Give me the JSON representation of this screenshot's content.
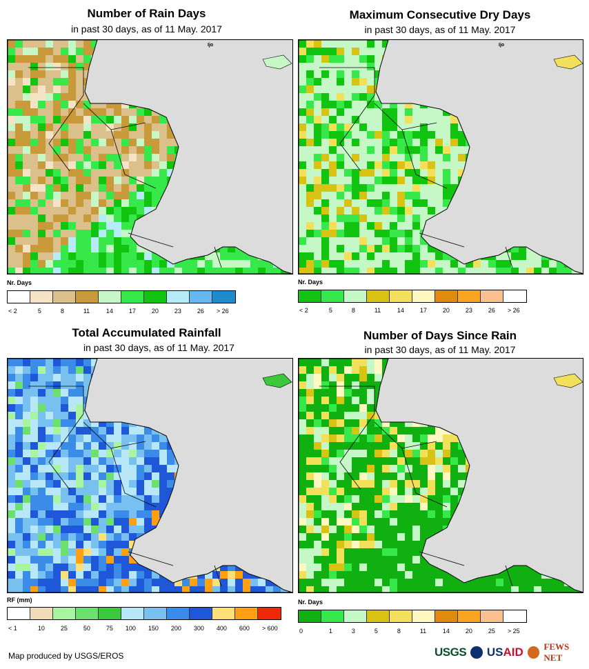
{
  "panels": [
    {
      "title": "Number of Rain Days",
      "subtitle": "in past 30 days, as of 11 May. 2017",
      "legend_title": "Nr. Days",
      "legend_colors": [
        "#ffffff",
        "#f5e3c6",
        "#dcc08c",
        "#c99a3a",
        "#c6f7c6",
        "#37e84a",
        "#10c410",
        "#b6ecf7",
        "#66b8f0",
        "#1e8ccc"
      ],
      "legend_labels": [
        "< 2",
        "5",
        "8",
        "11",
        "14",
        "17",
        "20",
        "23",
        "26",
        "> 26"
      ],
      "map_tag": "true"
    },
    {
      "title": "Maximum Consecutive Dry Days",
      "subtitle": "in past 30 days, as of 11 May. 2017",
      "legend_title": "Nr. Days",
      "legend_colors": [
        "#10c410",
        "#37e84a",
        "#c6f7c6",
        "#d8c214",
        "#f2e05a",
        "#fff8c0",
        "#e08a10",
        "#fba421",
        "#f9c090",
        "#ffffff"
      ],
      "legend_labels": [
        "< 2",
        "5",
        "8",
        "11",
        "14",
        "17",
        "20",
        "23",
        "26",
        "> 26"
      ],
      "map_tag": "true"
    },
    {
      "title": "Total Accumulated Rainfall",
      "subtitle": "in past 30 days, as of 11 May. 2017",
      "legend_title": "RF (mm)",
      "legend_colors": [
        "#ffffff",
        "#f0dcb8",
        "#a8f5a0",
        "#6ce06c",
        "#3cc83c",
        "#b8e8f8",
        "#78c0f0",
        "#3a8ce8",
        "#1e58d8",
        "#fde078",
        "#ffa010",
        "#f02808"
      ],
      "legend_labels": [
        "< 1",
        "10",
        "25",
        "50",
        "75",
        "100",
        "150",
        "200",
        "300",
        "400",
        "600",
        "> 600"
      ],
      "map_tag": "false"
    },
    {
      "title": "Number of Days Since Rain",
      "subtitle": "in past 30 days, as of 11 May. 2017",
      "legend_title": "Nr. Days",
      "legend_colors": [
        "#10b010",
        "#37e84a",
        "#c6f7c6",
        "#d8c214",
        "#f2e05a",
        "#fff8c0",
        "#e08a10",
        "#fba421",
        "#f9c090",
        "#ffffff"
      ],
      "legend_labels": [
        "0",
        "1",
        "3",
        "5",
        "8",
        "11",
        "14",
        "20",
        "25",
        "> 25"
      ],
      "map_tag": "false"
    }
  ],
  "map_label_text": "Ijo",
  "credit": "Map produced by USGS/EROS",
  "logos": {
    "usgs": "USGS",
    "usaid_us": "US",
    "usaid_aid": "AID",
    "fews": "FEWS NET"
  },
  "colors": {
    "land_outline": "#000000",
    "sea": "#dcdcdc"
  }
}
